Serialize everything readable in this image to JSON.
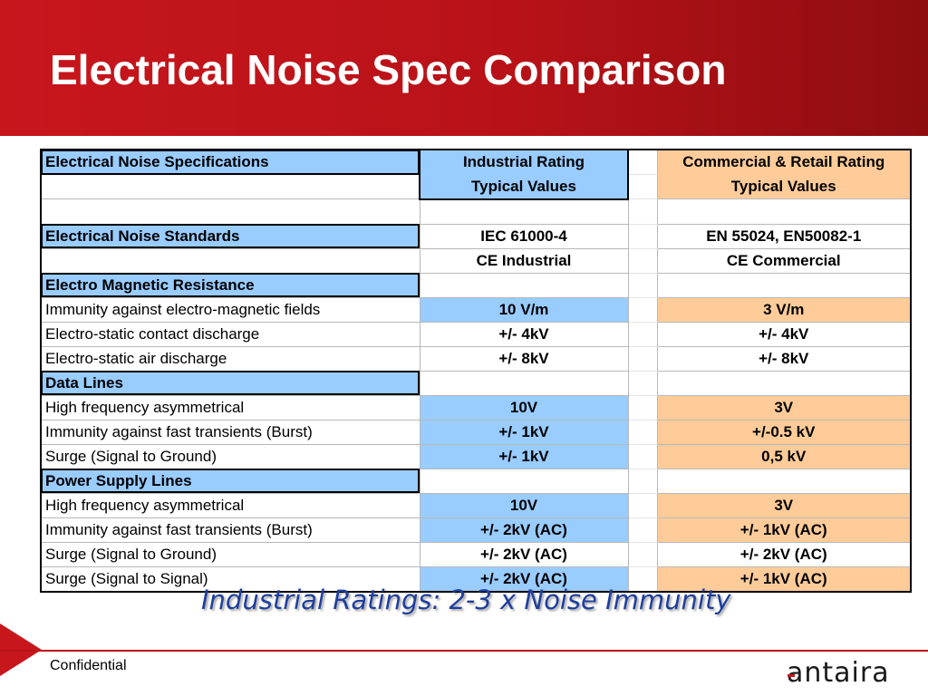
{
  "slide": {
    "title": "Electrical Noise Spec Comparison",
    "subtitle": "Industrial Ratings: 2-3 x Noise Immunity",
    "footer": "Confidential",
    "logo_text": "antaira"
  },
  "colors": {
    "header_red": "#c8161d",
    "industrial_fill": "#99ccff",
    "commercial_fill": "#ffcc99",
    "subtitle_blue": "#1f3f9c"
  },
  "table": {
    "rows": [
      {
        "c1": "Electrical Noise Specifications",
        "c2": "Industrial Rating",
        "c4": "Commercial & Retail Rating"
      },
      {
        "c1": "",
        "c2": "Typical Values",
        "c4": "Typical Values"
      },
      {
        "c1": "",
        "c2": "",
        "c4": ""
      },
      {
        "c1": "Electrical Noise  Standards",
        "c2": "IEC 61000-4",
        "c4": "EN 55024, EN50082-1"
      },
      {
        "c1": "",
        "c2": "CE Industrial",
        "c4": "CE Commercial"
      },
      {
        "c1": "Electro Magnetic Resistance",
        "c2": "",
        "c4": ""
      },
      {
        "c1": "Immunity against electro-magnetic fields",
        "c2": "10 V/m",
        "c4": "3 V/m"
      },
      {
        "c1": "Electro-static contact discharge",
        "c2": "+/- 4kV",
        "c4": "+/- 4kV"
      },
      {
        "c1": "Electro-static air discharge",
        "c2": "+/- 8kV",
        "c4": "+/- 8kV"
      },
      {
        "c1": "Data Lines",
        "c2": "",
        "c4": ""
      },
      {
        "c1": "High frequency asymmetrical",
        "c2": "10V",
        "c4": "3V"
      },
      {
        "c1": "Immunity against fast transients (Burst)",
        "c2": "+/- 1kV",
        "c4": "+/-0.5 kV"
      },
      {
        "c1": "Surge (Signal to Ground)",
        "c2": "+/- 1kV",
        "c4": "0,5 kV"
      },
      {
        "c1": "Power Supply Lines",
        "c2": "",
        "c4": ""
      },
      {
        "c1": "High frequency asymmetrical",
        "c2": "10V",
        "c4": "3V"
      },
      {
        "c1": "Immunity against fast transients (Burst)",
        "c2": "+/- 2kV (AC)",
        "c4": "+/- 1kV (AC)"
      },
      {
        "c1": "Surge (Signal to Ground)",
        "c2": "+/- 2kV (AC)",
        "c4": "+/- 2kV (AC)"
      },
      {
        "c1": "Surge (Signal to Signal)",
        "c2": "+/- 2kV (AC)",
        "c4": "+/- 1kV (AC)"
      }
    ]
  }
}
